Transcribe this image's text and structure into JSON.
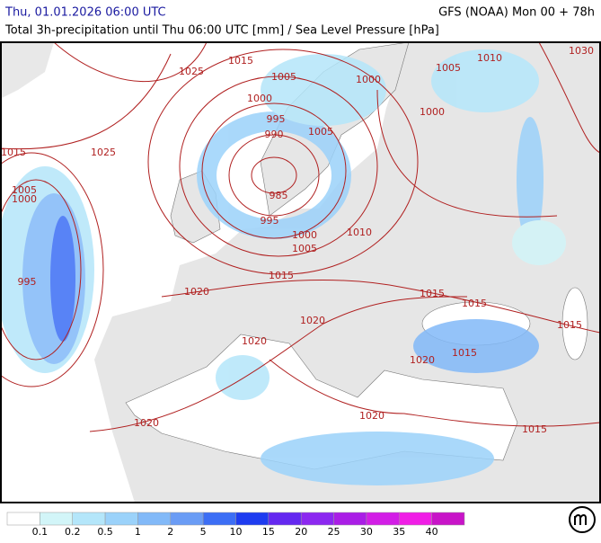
{
  "header": {
    "datetime": "Thu, 01.01.2026 06:00 UTC",
    "model": "GFS (NOAA) Mon 00 + 78h",
    "subtitle": "Total 3h-precipitation until Thu 06:00 UTC [mm] / Sea Level Pressure [hPa]"
  },
  "isobar_labels": [
    1025,
    1015,
    1005,
    1000,
    1005,
    1010,
    1030,
    1000,
    995,
    1005,
    1000,
    990,
    1015,
    1025,
    1005,
    1000,
    985,
    995,
    1000,
    1005,
    1010,
    995,
    1015,
    1020,
    1015,
    1015,
    1020,
    1015,
    1020,
    1015,
    1020,
    1020,
    1020,
    1015
  ],
  "legend": {
    "colors": [
      "#ffffff",
      "#d2f5f8",
      "#b4e6fa",
      "#9bd2fa",
      "#82b9f8",
      "#6a9cf5",
      "#3c6ef5",
      "#1e3cf0",
      "#6428f0",
      "#8c28f0",
      "#aa1ee6",
      "#d21ee6",
      "#f01ee6",
      "#c814c8"
    ],
    "labels": [
      0.1,
      0.2,
      0.5,
      1,
      2,
      5,
      10,
      15,
      20,
      25,
      30,
      35,
      40
    ]
  }
}
